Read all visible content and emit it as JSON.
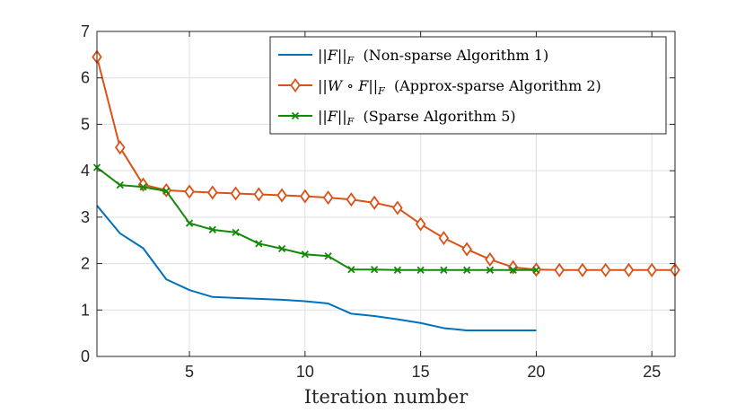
{
  "chart_data": {
    "type": "line",
    "title": "",
    "xlabel": "Iteration number",
    "ylabel": "",
    "xlim": [
      1,
      26
    ],
    "ylim": [
      0,
      7
    ],
    "xticks": [
      5,
      10,
      15,
      20,
      25
    ],
    "yticks": [
      0,
      1,
      2,
      3,
      4,
      5,
      6,
      7
    ],
    "grid": true,
    "legend_position": "top-right",
    "series": [
      {
        "name": "||F||_F (Non-sparse Algorithm 1)",
        "legend_math": "||F||",
        "legend_sub": "F",
        "legend_text": "(Non-sparse Algorithm 1)",
        "color": "#0072BD",
        "marker": "none",
        "x": [
          1,
          2,
          3,
          4,
          5,
          6,
          7,
          8,
          9,
          10,
          11,
          12,
          13,
          14,
          15,
          16,
          17,
          18,
          19,
          20
        ],
        "y": [
          3.25,
          2.65,
          2.33,
          1.66,
          1.43,
          1.28,
          1.26,
          1.24,
          1.22,
          1.19,
          1.14,
          0.92,
          0.87,
          0.8,
          0.72,
          0.61,
          0.56,
          0.56,
          0.56,
          0.56
        ]
      },
      {
        "name": "||W ∘ F||_F (Approx-sparse Algorithm 2)",
        "legend_math": "||W ∘ F||",
        "legend_sub": "F",
        "legend_text": "(Approx-sparse Algorithm 2)",
        "color": "#D95319",
        "marker": "diamond",
        "x": [
          1,
          2,
          3,
          4,
          5,
          6,
          7,
          8,
          9,
          10,
          11,
          12,
          13,
          14,
          15,
          16,
          17,
          18,
          19,
          20,
          21,
          22,
          23,
          24,
          25,
          26
        ],
        "y": [
          6.45,
          4.5,
          3.7,
          3.58,
          3.55,
          3.53,
          3.51,
          3.49,
          3.47,
          3.45,
          3.42,
          3.38,
          3.31,
          3.2,
          2.85,
          2.55,
          2.31,
          2.09,
          1.92,
          1.87,
          1.86,
          1.86,
          1.86,
          1.86,
          1.86,
          1.86
        ]
      },
      {
        "name": "||F||_F (Sparse Algorithm 5)",
        "legend_math": "||F||",
        "legend_sub": "F",
        "legend_text": "(Sparse Algorithm 5)",
        "color": "#138A07",
        "marker": "x",
        "x": [
          1,
          2,
          3,
          4,
          5,
          6,
          7,
          8,
          9,
          10,
          11,
          12,
          13,
          14,
          15,
          16,
          17,
          18,
          19,
          20
        ],
        "y": [
          4.07,
          3.69,
          3.65,
          3.56,
          2.87,
          2.73,
          2.67,
          2.43,
          2.32,
          2.2,
          2.16,
          1.87,
          1.87,
          1.86,
          1.86,
          1.86,
          1.86,
          1.86,
          1.86,
          1.86
        ]
      }
    ]
  }
}
